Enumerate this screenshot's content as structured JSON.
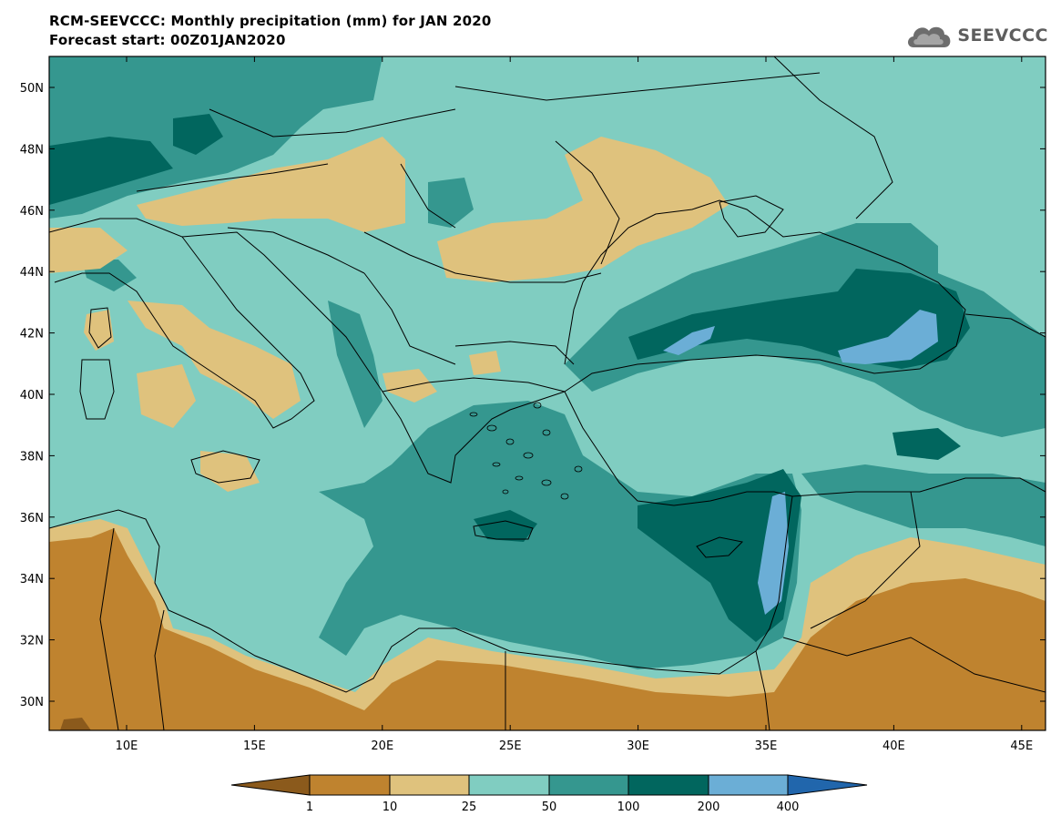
{
  "title": {
    "line1": "RCM-SEEVCCC: Monthly precipitation (mm) for JAN 2020",
    "line2": "Forecast start: 00Z01JAN2020"
  },
  "logo": {
    "text": "SEEVCCC",
    "icon": "cloud-icon"
  },
  "map": {
    "lat_ticks": [
      "50N",
      "48N",
      "46N",
      "44N",
      "42N",
      "40N",
      "38N",
      "36N",
      "34N",
      "32N",
      "30N"
    ],
    "lon_ticks": [
      "10E",
      "15E",
      "20E",
      "25E",
      "30E",
      "35E",
      "40E",
      "45E"
    ]
  },
  "legend": {
    "labels": [
      "1",
      "10",
      "25",
      "50",
      "100",
      "200",
      "400"
    ],
    "colors": {
      "lt1": "#8b5a1c",
      "c1_10": "#bf832f",
      "c10_25": "#dfc27d",
      "c25_50": "#80cdc1",
      "c50_100": "#35978f",
      "c100_200": "#01665e",
      "c200_400": "#6baed6",
      "gt400": "#2166ac"
    }
  }
}
